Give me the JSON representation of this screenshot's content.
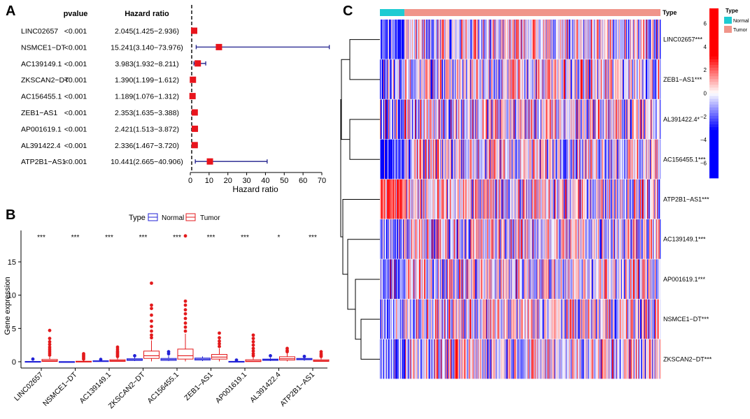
{
  "chart_data": [
    {
      "panel": "A",
      "type": "forest",
      "col_pvalue_header": "pvalue",
      "col_hr_header": "Hazard ratio",
      "xlabel": "Hazard ratio",
      "xlim": [
        0,
        75
      ],
      "xticks": [
        "0",
        "10",
        "20",
        "30",
        "40",
        "50",
        "60",
        "70"
      ],
      "xtick_values": [
        0,
        10,
        20,
        30,
        40,
        50,
        60,
        70
      ],
      "rows": [
        {
          "gene": "LINC02657",
          "pvalue": "<0.001",
          "hr_text": "2.045(1.425−2.936)",
          "hr": 2.045,
          "lo": 1.425,
          "hi": 2.936
        },
        {
          "gene": "NSMCE1−DT",
          "pvalue": "<0.001",
          "hr_text": "15.241(3.140−73.976)",
          "hr": 15.241,
          "lo": 3.14,
          "hi": 73.976
        },
        {
          "gene": "AC139149.1",
          "pvalue": "<0.001",
          "hr_text": "3.983(1.932−8.211)",
          "hr": 3.983,
          "lo": 1.932,
          "hi": 8.211
        },
        {
          "gene": "ZKSCAN2−DT",
          "pvalue": "<0.001",
          "hr_text": "1.390(1.199−1.612)",
          "hr": 1.39,
          "lo": 1.199,
          "hi": 1.612
        },
        {
          "gene": "AC156455.1",
          "pvalue": "<0.001",
          "hr_text": "1.189(1.076−1.312)",
          "hr": 1.189,
          "lo": 1.076,
          "hi": 1.312
        },
        {
          "gene": "ZEB1−AS1",
          "pvalue": "<0.001",
          "hr_text": "2.353(1.635−3.388)",
          "hr": 2.353,
          "lo": 1.635,
          "hi": 3.388
        },
        {
          "gene": "AP001619.1",
          "pvalue": "<0.001",
          "hr_text": "2.421(1.513−3.872)",
          "hr": 2.421,
          "lo": 1.513,
          "hi": 3.872
        },
        {
          "gene": "AL391422.4",
          "pvalue": "<0.001",
          "hr_text": "2.336(1.467−3.720)",
          "hr": 2.336,
          "lo": 1.467,
          "hi": 3.72
        },
        {
          "gene": "ATP2B1−AS1",
          "pvalue": "<0.001",
          "hr_text": "10.441(2.665−40.906)",
          "hr": 10.441,
          "lo": 2.665,
          "hi": 40.906
        }
      ]
    },
    {
      "panel": "B",
      "type": "boxplot",
      "ylabel": "Gene expression",
      "ylim": [
        0,
        19
      ],
      "yticks": [
        "0",
        "5",
        "10",
        "15"
      ],
      "ytick_values": [
        0,
        5,
        10,
        15
      ],
      "legend_title": "Type",
      "legend": [
        "Normal",
        "Tumor"
      ],
      "series_colors": {
        "Normal": "#2121d6",
        "Tumor": "#e31a1c"
      },
      "categories": [
        "LINC02657",
        "NSMCE1−DT",
        "AC139149.1",
        "ZKSCAN2−DT",
        "AC156455.1",
        "ZEB1−AS1",
        "AP001619.1",
        "AL391422.4",
        "ATP2B1−AS1"
      ],
      "significance": [
        "***",
        "***",
        "***",
        "***",
        "***",
        "***",
        "***",
        "*",
        "***"
      ],
      "normal": [
        {
          "q1": 0.0,
          "med": 0.02,
          "q3": 0.05,
          "wlo": 0.0,
          "whi": 0.1,
          "out": [
            0.4
          ]
        },
        {
          "q1": 0.0,
          "med": 0.0,
          "q3": 0.02,
          "wlo": 0.0,
          "whi": 0.05,
          "out": []
        },
        {
          "q1": 0.05,
          "med": 0.1,
          "q3": 0.15,
          "wlo": 0.0,
          "whi": 0.25,
          "out": [
            0.35
          ]
        },
        {
          "q1": 0.2,
          "med": 0.3,
          "q3": 0.45,
          "wlo": 0.1,
          "whi": 0.7,
          "out": [
            0.9
          ]
        },
        {
          "q1": 0.2,
          "med": 0.35,
          "q3": 0.5,
          "wlo": 0.1,
          "whi": 0.9,
          "out": [
            1.2,
            1.5
          ]
        },
        {
          "q1": 0.25,
          "med": 0.4,
          "q3": 0.55,
          "wlo": 0.1,
          "whi": 0.8,
          "out": []
        },
        {
          "q1": 0.0,
          "med": 0.02,
          "q3": 0.06,
          "wlo": 0.0,
          "whi": 0.12,
          "out": [
            0.25
          ]
        },
        {
          "q1": 0.2,
          "med": 0.3,
          "q3": 0.4,
          "wlo": 0.1,
          "whi": 0.6,
          "out": [
            0.9
          ]
        },
        {
          "q1": 0.3,
          "med": 0.4,
          "q3": 0.5,
          "wlo": 0.15,
          "whi": 0.7,
          "out": [
            0.8
          ]
        }
      ],
      "tumor": [
        {
          "q1": 0.05,
          "med": 0.15,
          "q3": 0.35,
          "wlo": 0.0,
          "whi": 0.8,
          "out": [
            1.0,
            1.3,
            1.6,
            1.9,
            2.2,
            2.6,
            3.0,
            3.5,
            4.7
          ]
        },
        {
          "q1": 0.0,
          "med": 0.02,
          "q3": 0.08,
          "wlo": 0.0,
          "whi": 0.2,
          "out": [
            0.4,
            0.6,
            0.8,
            1.0,
            1.2
          ]
        },
        {
          "q1": 0.05,
          "med": 0.15,
          "q3": 0.3,
          "wlo": 0.0,
          "whi": 0.6,
          "out": [
            0.8,
            1.0,
            1.2,
            1.4,
            1.6,
            1.9,
            2.2
          ]
        },
        {
          "q1": 0.5,
          "med": 0.9,
          "q3": 1.6,
          "wlo": 0.05,
          "whi": 3.2,
          "out": [
            3.6,
            4.0,
            4.6,
            5.3,
            6.1,
            7.0,
            8.0,
            8.5,
            11.8
          ]
        },
        {
          "q1": 0.4,
          "med": 0.9,
          "q3": 1.9,
          "wlo": 0.05,
          "whi": 4.2,
          "out": [
            4.6,
            5.2,
            5.8,
            6.5,
            7.2,
            7.8,
            8.5,
            9.1,
            18.9
          ]
        },
        {
          "q1": 0.4,
          "med": 0.7,
          "q3": 1.1,
          "wlo": 0.05,
          "whi": 2.0,
          "out": [
            2.3,
            2.7,
            3.1,
            3.6,
            4.3
          ]
        },
        {
          "q1": 0.02,
          "med": 0.1,
          "q3": 0.3,
          "wlo": 0.0,
          "whi": 0.7,
          "out": [
            0.9,
            1.2,
            1.6,
            2.0,
            2.5,
            3.0,
            3.5,
            4.0
          ]
        },
        {
          "q1": 0.25,
          "med": 0.45,
          "q3": 0.75,
          "wlo": 0.05,
          "whi": 1.3,
          "out": [
            1.5,
            1.7,
            2.0
          ]
        },
        {
          "q1": 0.05,
          "med": 0.15,
          "q3": 0.3,
          "wlo": 0.0,
          "whi": 0.6,
          "out": [
            0.8,
            1.0,
            1.2,
            1.5
          ]
        }
      ]
    },
    {
      "panel": "C",
      "type": "heatmap",
      "annotation_title": "Type",
      "annotation_levels": [
        "Normal",
        "Tumor"
      ],
      "annotation_colors": {
        "Normal": "#1ecbd2",
        "Tumor": "#f0958a"
      },
      "normal_fraction": 0.088,
      "rows": [
        "LINC02657***",
        "ZEB1−AS1***",
        "AL391422.4*",
        "AC156455.1***",
        "ATP2B1−AS1***",
        "AC139149.1***",
        "AP001619.1***",
        "NSMCE1−DT***",
        "ZKSCAN2−DT***"
      ],
      "row_bias_normal": [
        -0.6,
        -0.6,
        -0.4,
        -0.8,
        0.9,
        -0.5,
        -0.5,
        -0.4,
        -0.5
      ],
      "colorbar_ticks": [
        "6",
        "4",
        "2",
        "0",
        "−2",
        "−4",
        "−6"
      ],
      "colorbar_values": [
        6,
        4,
        2,
        0,
        -2,
        -4,
        -6
      ],
      "colorbar_range": [
        -7.3,
        7.3
      ],
      "colors": {
        "low": "#0000ff",
        "mid": "#ffffff",
        "high": "#ff0000"
      },
      "dendrogram": "((LINC02657,ZEB1-AS1),(AL391422.4,AC156455.1)),(ATP2B1-AS1,(AC139149.1,(AP001619.1,(NSMCE1-DT,ZKSCAN2-DT))))"
    }
  ],
  "labels": {
    "panel_a": "A",
    "panel_b": "B",
    "panel_c": "C",
    "heatmap_type_label": "Type"
  }
}
